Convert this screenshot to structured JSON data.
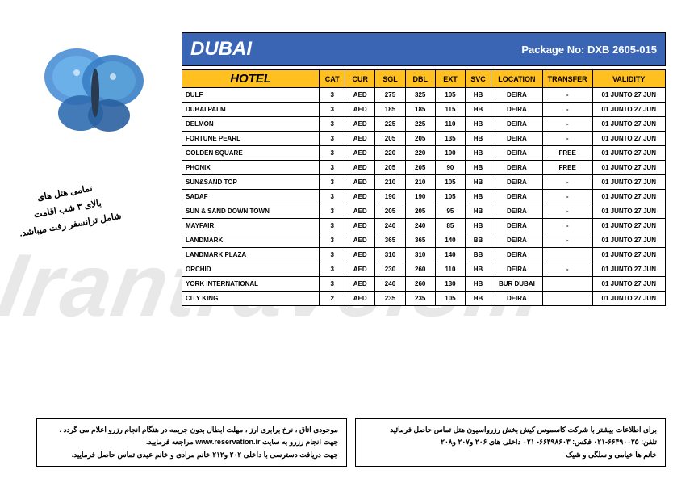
{
  "watermark": "Irantravels.ir",
  "header": {
    "title": "DUBAI",
    "package_label": "Package No: DXB 2605-015"
  },
  "farsi_note": {
    "line1": "تمامی هتل های",
    "line2": "بالای ۳ شب اقامت",
    "line3": "شامل ترانسفر رفت میباشد."
  },
  "columns": [
    "HOTEL",
    "CAT",
    "CUR",
    "SGL",
    "DBL",
    "EXT",
    "SVC",
    "LOCATION",
    "TRANSFER",
    "VALIDITY"
  ],
  "rows": [
    {
      "hotel": "DULF",
      "cat": "3",
      "cur": "AED",
      "sgl": "275",
      "dbl": "325",
      "ext": "105",
      "svc": "HB",
      "loc": "DEIRA",
      "tr": "-",
      "val": "01 JUNTO 27 JUN"
    },
    {
      "hotel": "DUBAI PALM",
      "cat": "3",
      "cur": "AED",
      "sgl": "185",
      "dbl": "185",
      "ext": "115",
      "svc": "HB",
      "loc": "DEIRA",
      "tr": "-",
      "val": "01 JUNTO 27 JUN"
    },
    {
      "hotel": "DELMON",
      "cat": "3",
      "cur": "AED",
      "sgl": "225",
      "dbl": "225",
      "ext": "110",
      "svc": "HB",
      "loc": "DEIRA",
      "tr": "-",
      "val": "01 JUNTO 27 JUN"
    },
    {
      "hotel": "FORTUNE PEARL",
      "cat": "3",
      "cur": "AED",
      "sgl": "205",
      "dbl": "205",
      "ext": "135",
      "svc": "HB",
      "loc": "DEIRA",
      "tr": "-",
      "val": "01 JUNTO 27 JUN"
    },
    {
      "hotel": "GOLDEN SQUARE",
      "cat": "3",
      "cur": "AED",
      "sgl": "220",
      "dbl": "220",
      "ext": "100",
      "svc": "HB",
      "loc": "DEIRA",
      "tr": "FREE",
      "val": "01 JUNTO 27 JUN"
    },
    {
      "hotel": "PHONIX",
      "cat": "3",
      "cur": "AED",
      "sgl": "205",
      "dbl": "205",
      "ext": "90",
      "svc": "HB",
      "loc": "DEIRA",
      "tr": "FREE",
      "val": "01 JUNTO 27 JUN"
    },
    {
      "hotel": "SUN&SAND TOP",
      "cat": "3",
      "cur": "AED",
      "sgl": "210",
      "dbl": "210",
      "ext": "105",
      "svc": "HB",
      "loc": "DEIRA",
      "tr": "-",
      "val": "01 JUNTO 27 JUN"
    },
    {
      "hotel": "SADAF",
      "cat": "3",
      "cur": "AED",
      "sgl": "190",
      "dbl": "190",
      "ext": "105",
      "svc": "HB",
      "loc": "DEIRA",
      "tr": "-",
      "val": "01 JUNTO 27 JUN"
    },
    {
      "hotel": "SUN & SAND DOWN TOWN",
      "cat": "3",
      "cur": "AED",
      "sgl": "205",
      "dbl": "205",
      "ext": "95",
      "svc": "HB",
      "loc": "DEIRA",
      "tr": "-",
      "val": "01 JUNTO 27 JUN"
    },
    {
      "hotel": " MAYFAIR",
      "cat": "3",
      "cur": "AED",
      "sgl": "240",
      "dbl": "240",
      "ext": "85",
      "svc": "HB",
      "loc": "DEIRA",
      "tr": "-",
      "val": "01 JUNTO 27 JUN"
    },
    {
      "hotel": "LANDMARK",
      "cat": "3",
      "cur": "AED",
      "sgl": "365",
      "dbl": "365",
      "ext": "140",
      "svc": "BB",
      "loc": "DEIRA",
      "tr": "-",
      "val": "01 JUNTO 27 JUN"
    },
    {
      "hotel": "LANDMARK PLAZA",
      "cat": "3",
      "cur": "AED",
      "sgl": "310",
      "dbl": "310",
      "ext": "140",
      "svc": "BB",
      "loc": "DEIRA",
      "tr": "",
      "val": "01 JUNTO 27 JUN"
    },
    {
      "hotel": "ORCHID",
      "cat": "3",
      "cur": "AED",
      "sgl": "230",
      "dbl": "260",
      "ext": "110",
      "svc": "HB",
      "loc": "DEIRA",
      "tr": "-",
      "val": "01 JUNTO 27 JUN"
    },
    {
      "hotel": "YORK INTERNATIONAL",
      "cat": "3",
      "cur": "AED",
      "sgl": "240",
      "dbl": "260",
      "ext": "130",
      "svc": "HB",
      "loc": "BUR DUBAI",
      "tr": "",
      "val": "01 JUNTO 27 JUN"
    },
    {
      "hotel": "CITY KING",
      "cat": "2",
      "cur": "AED",
      "sgl": "235",
      "dbl": "235",
      "ext": "105",
      "svc": "HB",
      "loc": "DEIRA",
      "tr": "",
      "val": "01 JUNTO 27 JUN"
    }
  ],
  "footer": {
    "right": {
      "l1": "برای اطلاعات بیشتر با شرکت کاسموس کیش  بخش رزرواسیون هتل  تماس حاصل فرمائید",
      "l2": "تلفن:  ۶۶۴۹۰۰۲۵-۰۲۱    فکس:  ۶۶۴۹۸۶۰۳- ۰۲۱    داخلی های ۲۰۶ و۲۰۷ و۲۰۸",
      "l3": "خانم ها خیامی و سلگی و شیک"
    },
    "left": {
      "l1": "موجودی اتاق ، نرخ برابری ارز ، مهلت ابطال بدون جریمه در هنگام انجام رزرو اعلام می گردد .",
      "l2": "جهت انجام رزرو به سایت  www.reservation.ir  مراجعه فرمایید.",
      "l3": "جهت دریافت دسترسی با داخلی ۲۰۲ و۲۱۲ خانم مرادی و خانم عیدی تماس حاصل فرمایید."
    }
  },
  "styling": {
    "header_bg": "#3a65b5",
    "th_bg": "#ffc020",
    "watermark_color": "#e8e8e8"
  }
}
